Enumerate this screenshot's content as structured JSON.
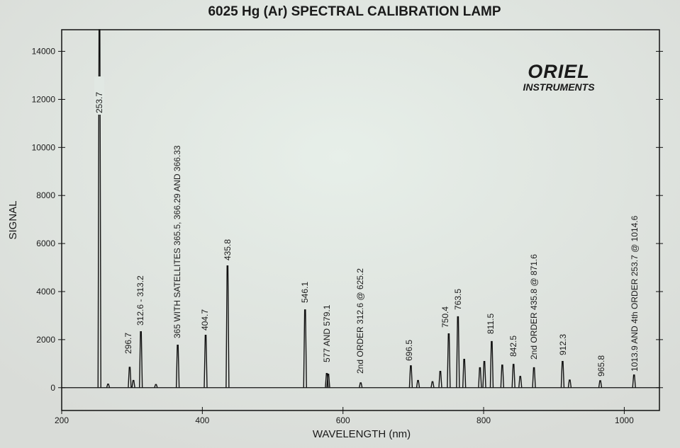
{
  "chart_data": {
    "type": "line",
    "title": "6025 Hg (Ar) SPECTRAL CALIBRATION LAMP",
    "x_label": "WAVELENGTH (nm)",
    "y_label": "SIGNAL",
    "logo": [
      "ORIEL",
      "INSTRUMENTS"
    ],
    "x": [
      253.7,
      266,
      296.7,
      302,
      312.6,
      334,
      365,
      404.7,
      435.8,
      546.1,
      577,
      579.1,
      625.2,
      696.5,
      706.7,
      727.3,
      738.4,
      750.4,
      763.5,
      772.4,
      794.8,
      801,
      811.5,
      826.5,
      842.5,
      852.1,
      871.6,
      912.3,
      922.4,
      965.8,
      1013.9
    ],
    "values": [
      14900,
      150,
      850,
      300,
      2330,
      130,
      1770,
      2180,
      5070,
      3240,
      590,
      560,
      200,
      910,
      300,
      250,
      680,
      2240,
      2950,
      1180,
      830,
      1090,
      1920,
      940,
      970,
      470,
      830,
      1090,
      320,
      290,
      530
    ],
    "color": "#111111",
    "xlim": [
      200,
      1050
    ],
    "ylim": [
      -950,
      14900
    ],
    "xticks": [
      200,
      400,
      600,
      800,
      1000
    ],
    "yticks": [
      0,
      2000,
      4000,
      6000,
      8000,
      10000,
      12000,
      14000
    ],
    "annotations": [
      "253.7",
      "296.7",
      "312.6 - 313.2",
      "365 WITH SATELLITES 365.5, 366.29 AND 366.33",
      "404.7",
      "435.8",
      "546.1",
      "577 AND 579.1",
      "2nd ORDER 312.6 @ 625.2",
      "696.5",
      "750.4",
      "763.5",
      "811.5",
      "842.5",
      "2nd ORDER 435.8 @ 871.6",
      "912.3",
      "965.8",
      "1013.9 AND 4th ORDER 253.7 @ 1014.6"
    ]
  }
}
